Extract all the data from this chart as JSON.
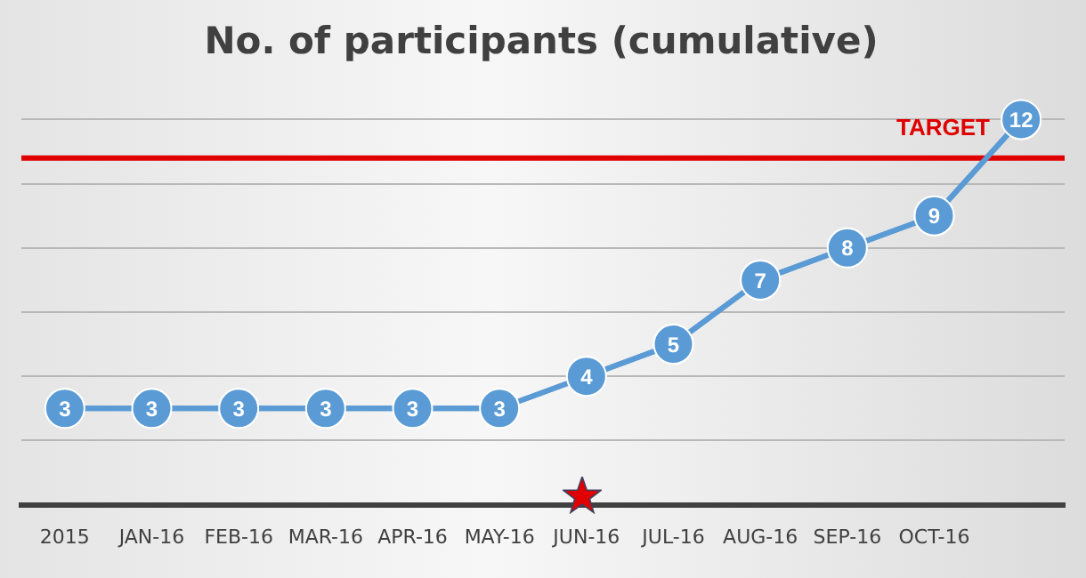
{
  "chart_data": {
    "type": "line",
    "title": "No. of participants (cumulative)",
    "categories": [
      "2015",
      "JAN-16",
      "FEB-16",
      "MAR-16",
      "APR-16",
      "MAY-16",
      "JUN-16",
      "JUL-16",
      "AUG-16",
      "SEP-16",
      "OCT-16",
      null
    ],
    "series": [
      {
        "color": "#5b9bd5",
        "values": [
          3,
          3,
          3,
          3,
          3,
          3,
          4,
          5,
          7,
          8,
          9,
          12
        ]
      }
    ],
    "ylim": [
      0,
      12
    ],
    "yticks": [
      {
        "value": 0,
        "label": null
      },
      {
        "value": 2,
        "label": null
      },
      {
        "value": 4,
        "label": null
      },
      {
        "value": 6,
        "label": null
      },
      {
        "value": 8,
        "label": null
      },
      {
        "value": 10,
        "label": null
      },
      {
        "value": 12,
        "label": null
      }
    ],
    "tick_labels": "x",
    "grid": "y",
    "marker": "circle",
    "line_style": "solid",
    "data_labels": true,
    "legend": false,
    "ref_lines": [
      {
        "axis": "y",
        "value": 10.8,
        "label": "TARGET",
        "color": "#e00000"
      }
    ]
  }
}
